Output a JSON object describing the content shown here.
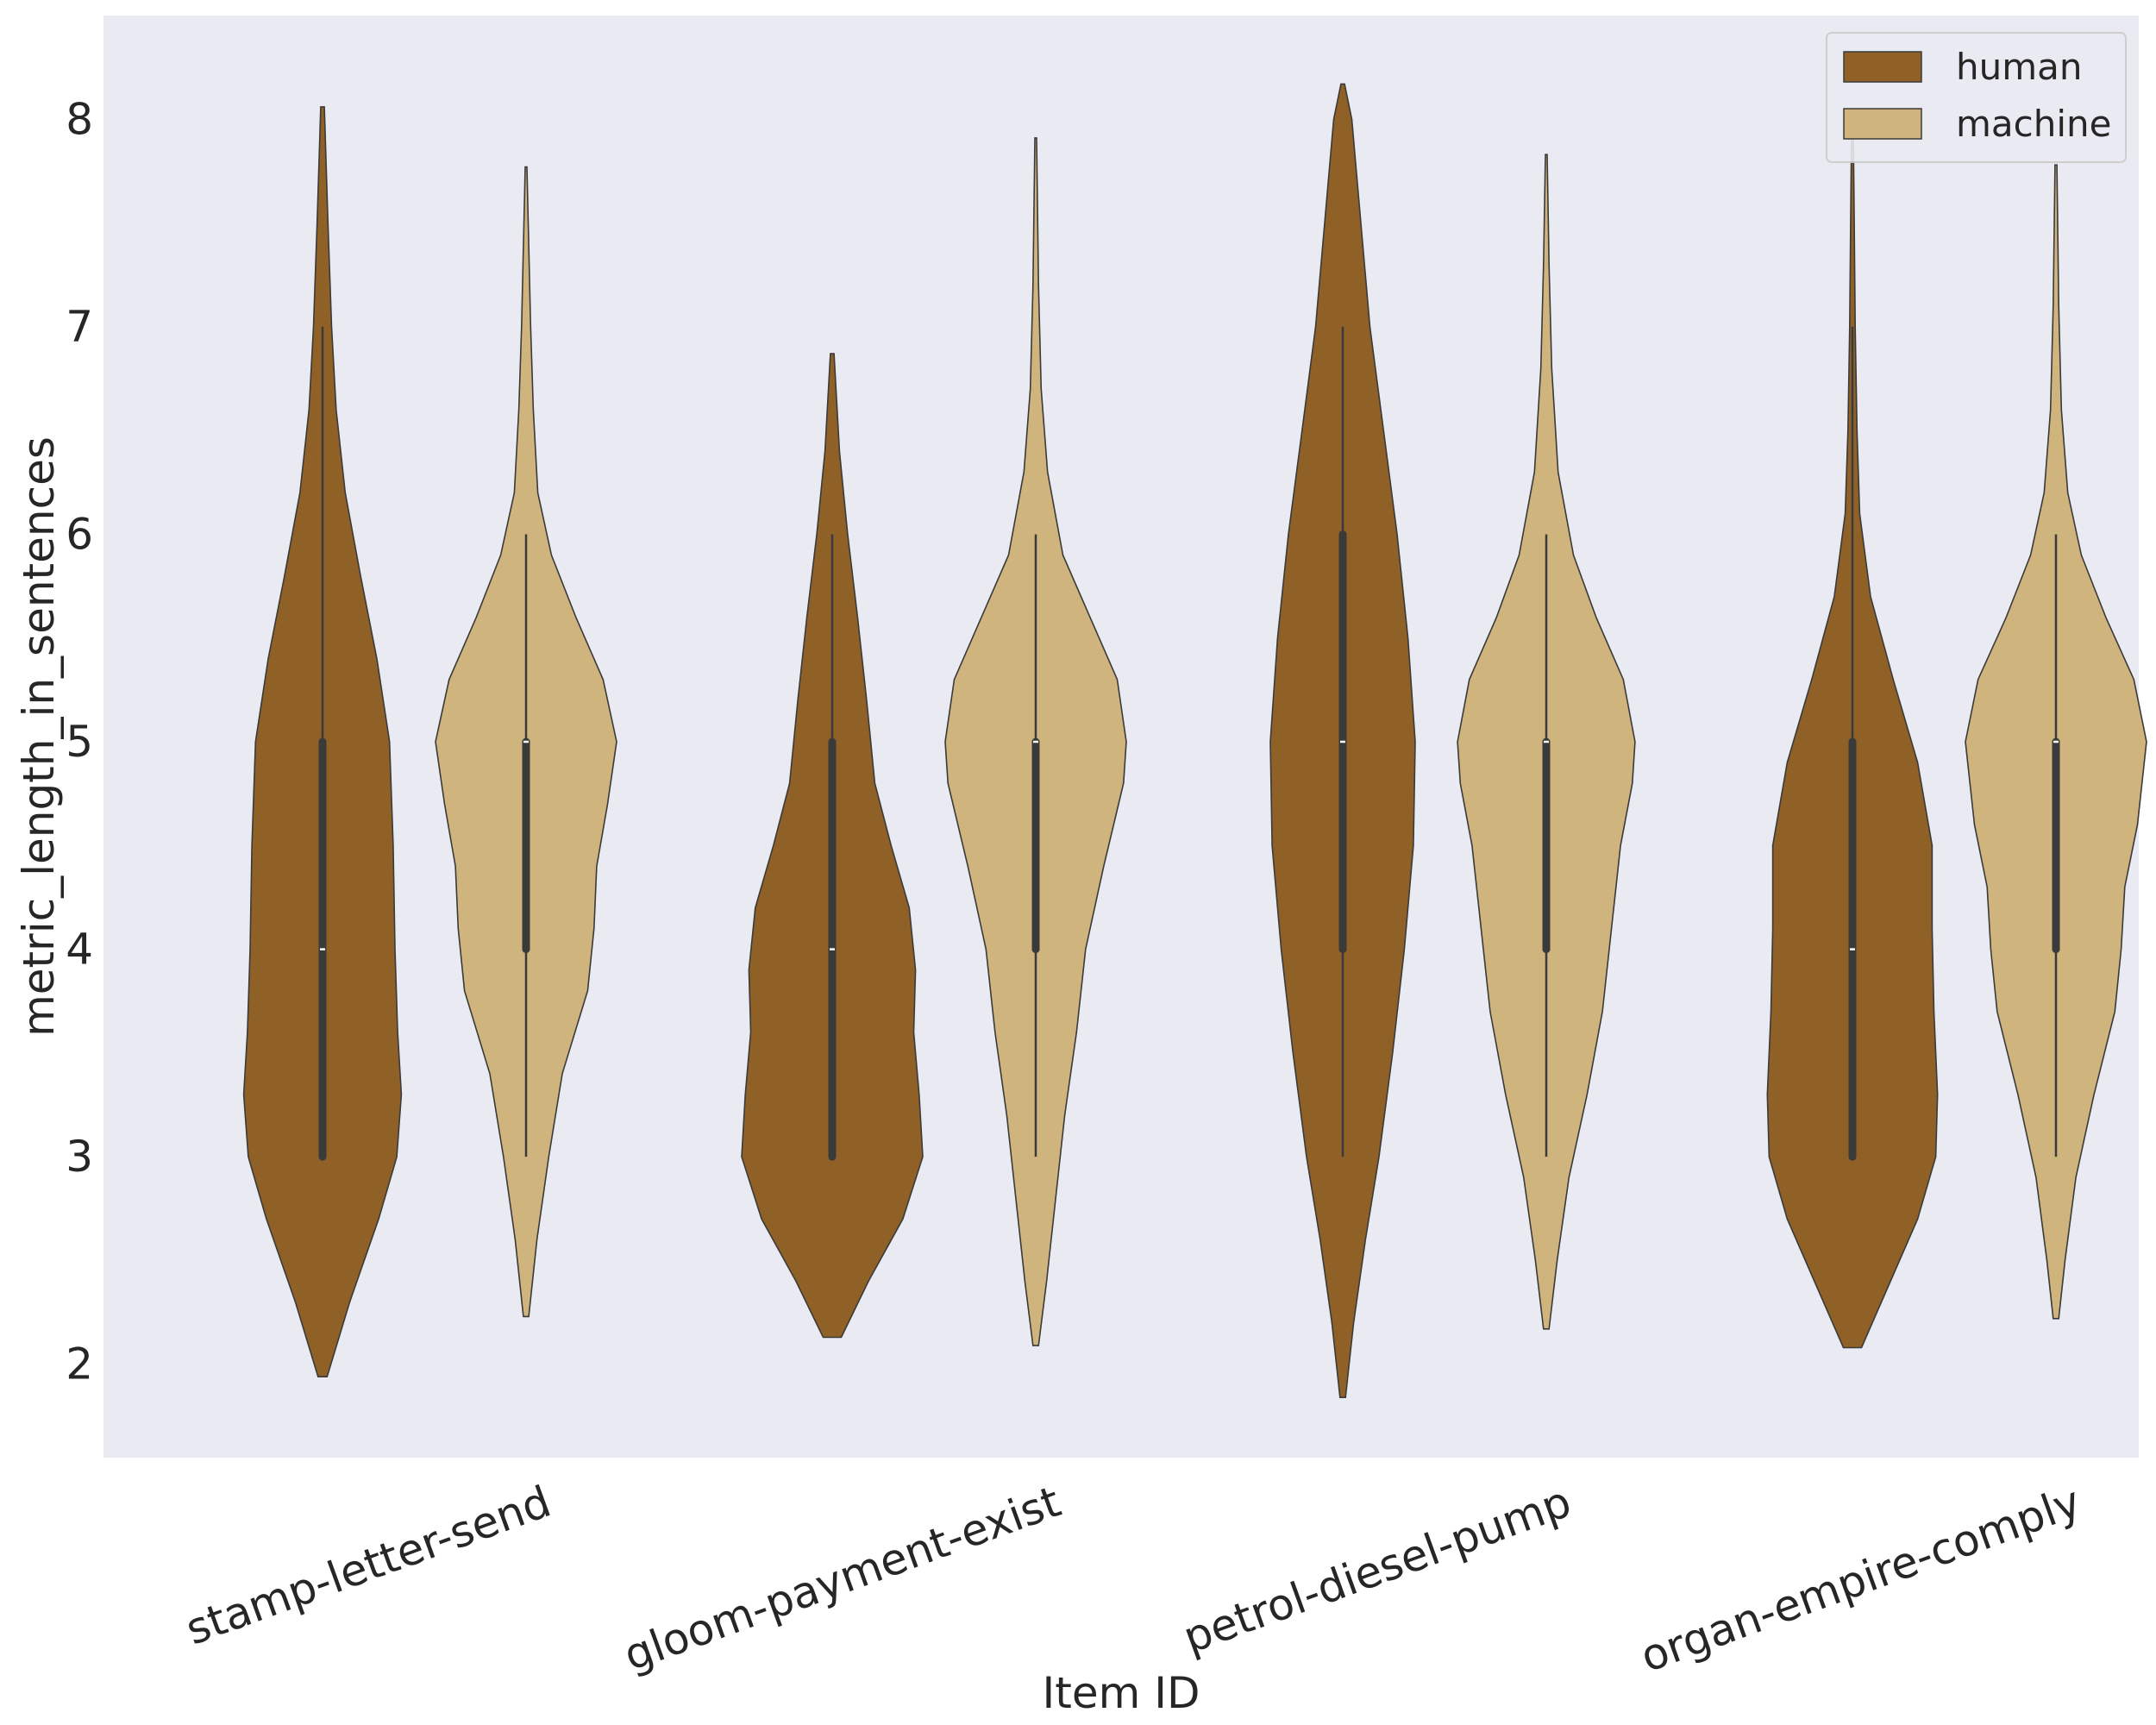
{
  "chart_data": {
    "type": "violin",
    "title": "",
    "xlabel": "Item ID",
    "ylabel": "metric_length_in_sentences",
    "ylim": [
      1.55,
      8.5
    ],
    "yticks": [
      2,
      3,
      4,
      5,
      6,
      7,
      8
    ],
    "grid": false,
    "legend_placement": "top-right",
    "categories": [
      "stamp-letter-send",
      "gloom-payment-exist",
      "petrol-diesel-pump",
      "organ-empire-comply"
    ],
    "series": [
      {
        "name": "human",
        "color": "#8f6127",
        "violins": [
          {
            "min": 3,
            "q1": 3,
            "median": 4,
            "q3": 5,
            "max": 7,
            "kde_min": 1.94,
            "kde_max": 8.06,
            "profile": [
              [
                1.94,
                0.05
              ],
              [
                2.3,
                0.3
              ],
              [
                2.7,
                0.62
              ],
              [
                3.0,
                0.82
              ],
              [
                3.3,
                0.87
              ],
              [
                3.6,
                0.83
              ],
              [
                4.0,
                0.8
              ],
              [
                4.5,
                0.78
              ],
              [
                5.0,
                0.74
              ],
              [
                5.4,
                0.6
              ],
              [
                5.8,
                0.42
              ],
              [
                6.2,
                0.25
              ],
              [
                6.6,
                0.15
              ],
              [
                7.0,
                0.1
              ],
              [
                7.5,
                0.06
              ],
              [
                8.06,
                0.02
              ]
            ]
          },
          {
            "min": 3,
            "q1": 3,
            "median": 4,
            "q3": 5,
            "max": 6,
            "kde_min": 2.13,
            "kde_max": 6.87,
            "profile": [
              [
                2.13,
                0.1
              ],
              [
                2.4,
                0.4
              ],
              [
                2.7,
                0.78
              ],
              [
                3.0,
                1.0
              ],
              [
                3.3,
                0.96
              ],
              [
                3.6,
                0.9
              ],
              [
                3.9,
                0.92
              ],
              [
                4.2,
                0.85
              ],
              [
                4.5,
                0.65
              ],
              [
                4.8,
                0.47
              ],
              [
                5.2,
                0.38
              ],
              [
                5.6,
                0.28
              ],
              [
                6.0,
                0.17
              ],
              [
                6.4,
                0.08
              ],
              [
                6.87,
                0.02
              ]
            ]
          },
          {
            "min": 3,
            "q1": 4,
            "median": 5,
            "q3": 6,
            "max": 7,
            "kde_min": 1.84,
            "kde_max": 8.17,
            "profile": [
              [
                1.84,
                0.03
              ],
              [
                2.2,
                0.12
              ],
              [
                2.6,
                0.25
              ],
              [
                3.0,
                0.4
              ],
              [
                3.5,
                0.55
              ],
              [
                4.0,
                0.68
              ],
              [
                4.5,
                0.78
              ],
              [
                5.0,
                0.8
              ],
              [
                5.5,
                0.72
              ],
              [
                6.0,
                0.6
              ],
              [
                6.5,
                0.45
              ],
              [
                7.0,
                0.3
              ],
              [
                7.5,
                0.2
              ],
              [
                8.0,
                0.1
              ],
              [
                8.17,
                0.02
              ]
            ]
          },
          {
            "min": 3,
            "q1": 3,
            "median": 4,
            "q3": 5,
            "max": 7,
            "kde_min": 2.08,
            "kde_max": 7.92,
            "profile": [
              [
                2.08,
                0.1
              ],
              [
                2.4,
                0.42
              ],
              [
                2.7,
                0.72
              ],
              [
                3.0,
                0.92
              ],
              [
                3.3,
                0.94
              ],
              [
                3.7,
                0.9
              ],
              [
                4.1,
                0.88
              ],
              [
                4.5,
                0.88
              ],
              [
                4.9,
                0.72
              ],
              [
                5.3,
                0.45
              ],
              [
                5.7,
                0.2
              ],
              [
                6.1,
                0.08
              ],
              [
                6.5,
                0.05
              ],
              [
                7.0,
                0.03
              ],
              [
                7.5,
                0.02
              ],
              [
                7.92,
                0.01
              ]
            ]
          }
        ]
      },
      {
        "name": "machine",
        "color": "#d0b47d",
        "violins": [
          {
            "min": 3,
            "q1": 4,
            "median": 5,
            "q3": 5,
            "max": 6,
            "kde_min": 2.23,
            "kde_max": 7.77,
            "profile": [
              [
                2.23,
                0.03
              ],
              [
                2.6,
                0.12
              ],
              [
                3.0,
                0.25
              ],
              [
                3.4,
                0.4
              ],
              [
                3.8,
                0.68
              ],
              [
                4.1,
                0.75
              ],
              [
                4.4,
                0.78
              ],
              [
                4.7,
                0.9
              ],
              [
                5.0,
                1.0
              ],
              [
                5.3,
                0.85
              ],
              [
                5.6,
                0.55
              ],
              [
                5.9,
                0.28
              ],
              [
                6.2,
                0.13
              ],
              [
                6.6,
                0.08
              ],
              [
                7.0,
                0.05
              ],
              [
                7.77,
                0.01
              ]
            ]
          },
          {
            "min": 3,
            "q1": 4,
            "median": 5,
            "q3": 5,
            "max": 6,
            "kde_min": 2.09,
            "kde_max": 7.91,
            "profile": [
              [
                2.09,
                0.03
              ],
              [
                2.4,
                0.12
              ],
              [
                2.8,
                0.22
              ],
              [
                3.2,
                0.32
              ],
              [
                3.6,
                0.45
              ],
              [
                4.0,
                0.55
              ],
              [
                4.4,
                0.75
              ],
              [
                4.8,
                0.97
              ],
              [
                5.0,
                1.0
              ],
              [
                5.3,
                0.9
              ],
              [
                5.6,
                0.6
              ],
              [
                5.9,
                0.3
              ],
              [
                6.3,
                0.13
              ],
              [
                6.7,
                0.06
              ],
              [
                7.2,
                0.03
              ],
              [
                7.91,
                0.01
              ]
            ]
          },
          {
            "min": 3,
            "q1": 4,
            "median": 5,
            "q3": 5,
            "max": 6,
            "kde_min": 2.17,
            "kde_max": 7.83,
            "profile": [
              [
                2.17,
                0.03
              ],
              [
                2.5,
                0.12
              ],
              [
                2.9,
                0.25
              ],
              [
                3.3,
                0.45
              ],
              [
                3.7,
                0.62
              ],
              [
                4.1,
                0.72
              ],
              [
                4.5,
                0.82
              ],
              [
                4.8,
                0.95
              ],
              [
                5.0,
                0.98
              ],
              [
                5.3,
                0.85
              ],
              [
                5.6,
                0.55
              ],
              [
                5.9,
                0.3
              ],
              [
                6.3,
                0.13
              ],
              [
                6.8,
                0.06
              ],
              [
                7.3,
                0.03
              ],
              [
                7.83,
                0.01
              ]
            ]
          },
          {
            "min": 3,
            "q1": 4,
            "median": 5,
            "q3": 5,
            "max": 6,
            "kde_min": 2.22,
            "kde_max": 7.78,
            "profile": [
              [
                2.22,
                0.03
              ],
              [
                2.5,
                0.1
              ],
              [
                2.9,
                0.22
              ],
              [
                3.3,
                0.42
              ],
              [
                3.7,
                0.65
              ],
              [
                4.0,
                0.72
              ],
              [
                4.3,
                0.76
              ],
              [
                4.6,
                0.9
              ],
              [
                5.0,
                1.0
              ],
              [
                5.3,
                0.86
              ],
              [
                5.6,
                0.55
              ],
              [
                5.9,
                0.28
              ],
              [
                6.2,
                0.13
              ],
              [
                6.6,
                0.06
              ],
              [
                7.1,
                0.03
              ],
              [
                7.78,
                0.01
              ]
            ]
          }
        ]
      }
    ]
  }
}
